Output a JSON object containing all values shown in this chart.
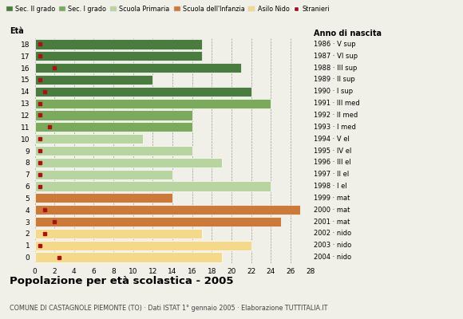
{
  "ages": [
    18,
    17,
    16,
    15,
    14,
    13,
    12,
    11,
    10,
    9,
    8,
    7,
    6,
    5,
    4,
    3,
    2,
    1,
    0
  ],
  "values": [
    17,
    17,
    21,
    12,
    22,
    24,
    16,
    16,
    11,
    16,
    19,
    14,
    24,
    14,
    27,
    25,
    17,
    22,
    19
  ],
  "bar_colors": [
    "#4a7c3f",
    "#4a7c3f",
    "#4a7c3f",
    "#4a7c3f",
    "#4a7c3f",
    "#7caa5c",
    "#7caa5c",
    "#7caa5c",
    "#b8d4a0",
    "#b8d4a0",
    "#b8d4a0",
    "#b8d4a0",
    "#b8d4a0",
    "#cc7a3a",
    "#cc7a3a",
    "#cc7a3a",
    "#f5d98b",
    "#f5d98b",
    "#f5d98b"
  ],
  "stranieri_values": [
    0.5,
    0.5,
    2,
    0.5,
    1,
    0.5,
    0.5,
    1.5,
    0.5,
    0.5,
    0.5,
    0.5,
    0.5,
    0,
    1,
    2,
    1,
    0.5,
    2.5
  ],
  "right_labels": [
    "1986 · V sup",
    "1987 · VI sup",
    "1988 · III sup",
    "1989 · II sup",
    "1990 · I sup",
    "1991 · III med",
    "1992 · II med",
    "1993 · I med",
    "1994 · V el",
    "1995 · IV el",
    "1996 · III el",
    "1997 · II el",
    "1998 · I el",
    "1999 · mat",
    "2000 · mat",
    "2001 · mat",
    "2002 · nido",
    "2003 · nido",
    "2004 · nido"
  ],
  "legend_labels": [
    "Sec. II grado",
    "Sec. I grado",
    "Scuola Primaria",
    "Scuola dell'Infanzia",
    "Asilo Nido",
    "Stranieri"
  ],
  "legend_colors": [
    "#4a7c3f",
    "#7caa5c",
    "#b8d4a0",
    "#cc7a3a",
    "#f5d98b",
    "#a01010"
  ],
  "title": "Popolazione per età scolastica - 2005",
  "subtitle": "COMUNE DI CASTAGNOLE PIEMONTE (TO) · Dati ISTAT 1° gennaio 2005 · Elaborazione TUTTITALIA.IT",
  "xlabel_eta": "Età",
  "xlabel_anno": "Anno di nascita",
  "xlim": [
    0,
    28
  ],
  "xticks": [
    0,
    2,
    4,
    6,
    8,
    10,
    12,
    14,
    16,
    18,
    20,
    22,
    24,
    26,
    28
  ],
  "bg_color": "#f0f0e8",
  "stranieri_color": "#aa1111",
  "bar_edge_color": "#ffffff"
}
